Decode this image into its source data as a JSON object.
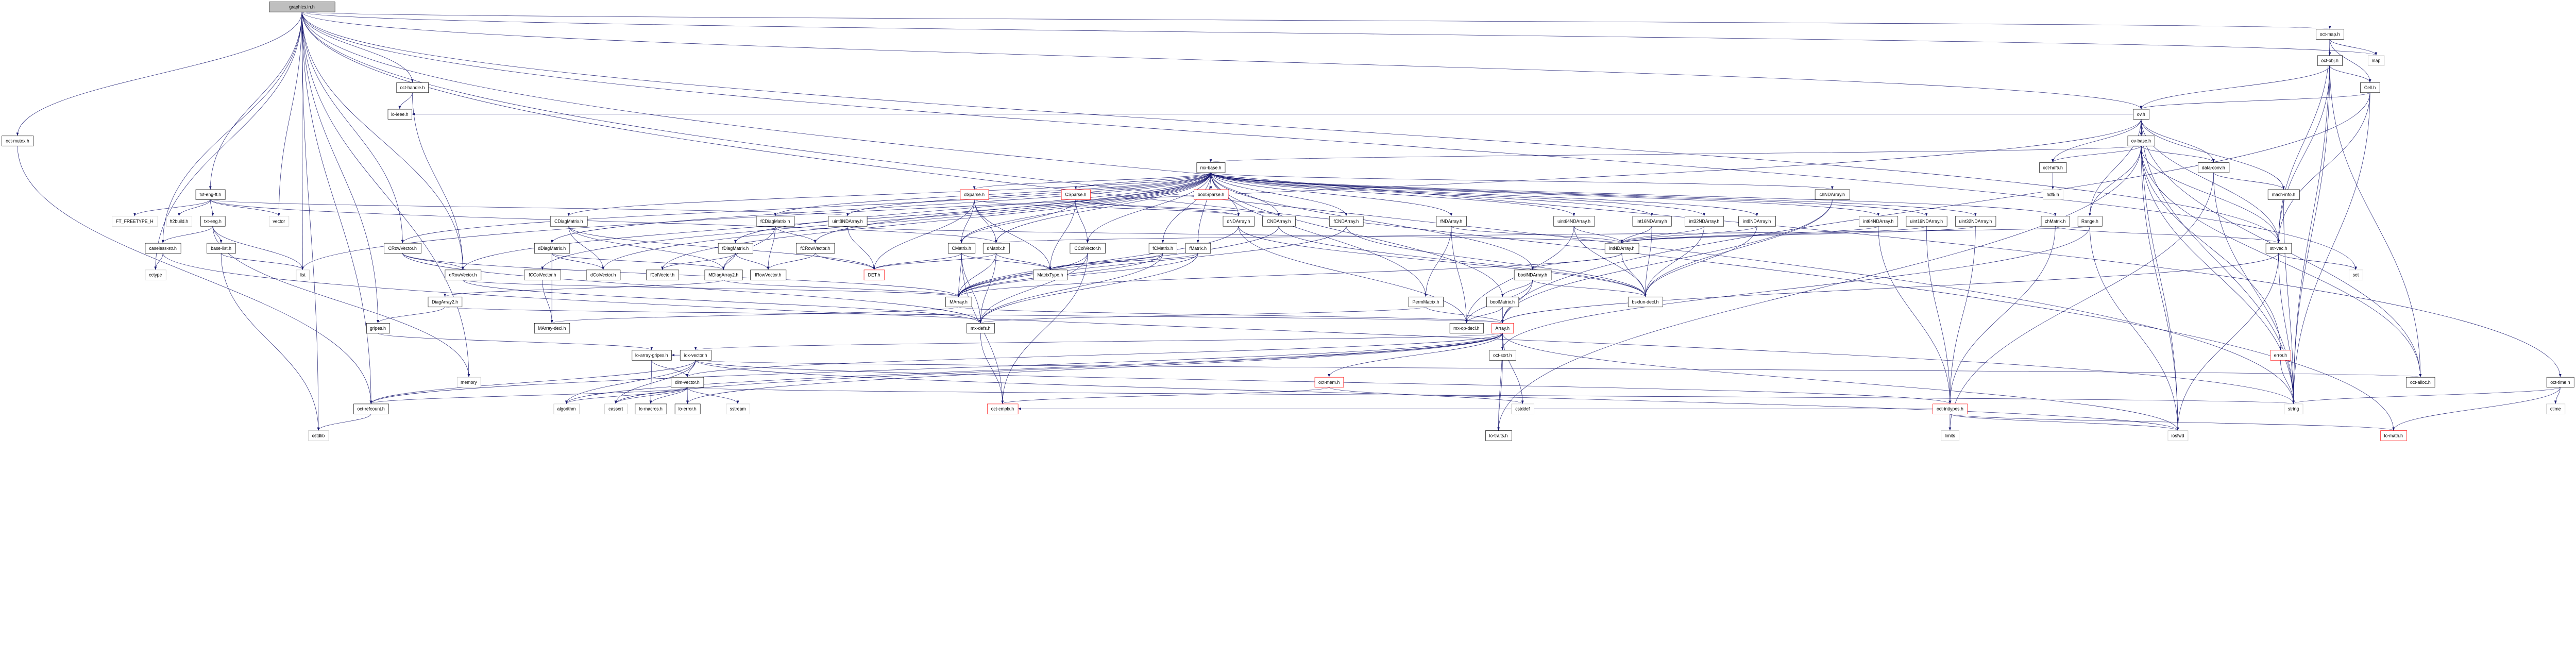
{
  "graph": {
    "title": "libinterp/corefcn/graphics.in.h",
    "edge_color": "#191970",
    "node_border_colors": {
      "normal": "#000000",
      "external": "#bfbfbf",
      "missing": "#ff0000",
      "main_fill": "#bfbfbf"
    },
    "nodes": [
      {
        "id": "graphics.in.h",
        "kind": "main"
      },
      {
        "id": "oct-map.h",
        "kind": "normal"
      },
      {
        "id": "oct-obj.h",
        "kind": "normal"
      },
      {
        "id": "map",
        "kind": "external"
      },
      {
        "id": "oct-handle.h",
        "kind": "normal"
      },
      {
        "id": "Cell.h",
        "kind": "normal"
      },
      {
        "id": "lo-ieee.h",
        "kind": "normal"
      },
      {
        "id": "ov.h",
        "kind": "normal"
      },
      {
        "id": "oct-mutex.h",
        "kind": "normal"
      },
      {
        "id": "ov-base.h",
        "kind": "normal"
      },
      {
        "id": "mx-base.h",
        "kind": "normal"
      },
      {
        "id": "oct-hdf5.h",
        "kind": "normal"
      },
      {
        "id": "data-conv.h",
        "kind": "normal"
      },
      {
        "id": "txt-eng-ft.h",
        "kind": "normal"
      },
      {
        "id": "dSparse.h",
        "kind": "missing"
      },
      {
        "id": "CSparse.h",
        "kind": "missing"
      },
      {
        "id": "boolSparse.h",
        "kind": "missing"
      },
      {
        "id": "chNDArray.h",
        "kind": "normal"
      },
      {
        "id": "hdf5.h",
        "kind": "external"
      },
      {
        "id": "mach-info.h",
        "kind": "normal"
      },
      {
        "id": "FT_FREETYPE_H",
        "kind": "external"
      },
      {
        "id": "ft2build.h",
        "kind": "external"
      },
      {
        "id": "txt-eng.h",
        "kind": "normal"
      },
      {
        "id": "vector",
        "kind": "external"
      },
      {
        "id": "CDiagMatrix.h",
        "kind": "normal"
      },
      {
        "id": "fCDiagMatrix.h",
        "kind": "normal"
      },
      {
        "id": "uint8NDArray.h",
        "kind": "normal"
      },
      {
        "id": "dNDArray.h",
        "kind": "normal"
      },
      {
        "id": "CNDArray.h",
        "kind": "normal"
      },
      {
        "id": "fCNDArray.h",
        "kind": "normal"
      },
      {
        "id": "fNDArray.h",
        "kind": "normal"
      },
      {
        "id": "uint64NDArray.h",
        "kind": "normal"
      },
      {
        "id": "int16NDArray.h",
        "kind": "normal"
      },
      {
        "id": "int32NDArray.h",
        "kind": "normal"
      },
      {
        "id": "int8NDArray.h",
        "kind": "normal"
      },
      {
        "id": "int64NDArray.h",
        "kind": "normal"
      },
      {
        "id": "uint16NDArray.h",
        "kind": "normal"
      },
      {
        "id": "uint32NDArray.h",
        "kind": "normal"
      },
      {
        "id": "chMatrix.h",
        "kind": "normal"
      },
      {
        "id": "Range.h",
        "kind": "normal"
      },
      {
        "id": "caseless-str.h",
        "kind": "normal"
      },
      {
        "id": "base-list.h",
        "kind": "normal"
      },
      {
        "id": "CRowVector.h",
        "kind": "normal"
      },
      {
        "id": "dDiagMatrix.h",
        "kind": "normal"
      },
      {
        "id": "fDiagMatrix.h",
        "kind": "normal"
      },
      {
        "id": "fCRowVector.h",
        "kind": "normal"
      },
      {
        "id": "CMatrix.h",
        "kind": "normal"
      },
      {
        "id": "dMatrix.h",
        "kind": "normal"
      },
      {
        "id": "CColVector.h",
        "kind": "normal"
      },
      {
        "id": "fCMatrix.h",
        "kind": "normal"
      },
      {
        "id": "fMatrix.h",
        "kind": "normal"
      },
      {
        "id": "intNDArray.h",
        "kind": "normal"
      },
      {
        "id": "str-vec.h",
        "kind": "normal"
      },
      {
        "id": "cctype",
        "kind": "external"
      },
      {
        "id": "list",
        "kind": "external"
      },
      {
        "id": "dRowVector.h",
        "kind": "normal"
      },
      {
        "id": "fCColVector.h",
        "kind": "normal"
      },
      {
        "id": "dColVector.h",
        "kind": "normal"
      },
      {
        "id": "fColVector.h",
        "kind": "normal"
      },
      {
        "id": "MDiagArray2.h",
        "kind": "normal"
      },
      {
        "id": "fRowVector.h",
        "kind": "normal"
      },
      {
        "id": "DET.h",
        "kind": "missing"
      },
      {
        "id": "MatrixType.h",
        "kind": "normal"
      },
      {
        "id": "boolNDArray.h",
        "kind": "normal"
      },
      {
        "id": "set",
        "kind": "external"
      },
      {
        "id": "DiagArray2.h",
        "kind": "normal"
      },
      {
        "id": "MArray.h",
        "kind": "normal"
      },
      {
        "id": "PermMatrix.h",
        "kind": "normal"
      },
      {
        "id": "boolMatrix.h",
        "kind": "normal"
      },
      {
        "id": "bsxfun-decl.h",
        "kind": "normal"
      },
      {
        "id": "gripes.h",
        "kind": "normal"
      },
      {
        "id": "MArray-decl.h",
        "kind": "normal"
      },
      {
        "id": "mx-defs.h",
        "kind": "normal"
      },
      {
        "id": "mx-op-decl.h",
        "kind": "normal"
      },
      {
        "id": "Array.h",
        "kind": "missing"
      },
      {
        "id": "lo-array-gripes.h",
        "kind": "normal"
      },
      {
        "id": "idx-vector.h",
        "kind": "normal"
      },
      {
        "id": "oct-sort.h",
        "kind": "normal"
      },
      {
        "id": "error.h",
        "kind": "missing"
      },
      {
        "id": "memory",
        "kind": "external"
      },
      {
        "id": "dim-vector.h",
        "kind": "normal"
      },
      {
        "id": "oct-mem.h",
        "kind": "missing"
      },
      {
        "id": "oct-alloc.h",
        "kind": "normal"
      },
      {
        "id": "oct-time.h",
        "kind": "normal"
      },
      {
        "id": "oct-refcount.h",
        "kind": "normal"
      },
      {
        "id": "algorithm",
        "kind": "external"
      },
      {
        "id": "cassert",
        "kind": "external"
      },
      {
        "id": "lo-macros.h",
        "kind": "normal"
      },
      {
        "id": "lo-error.h",
        "kind": "normal"
      },
      {
        "id": "sstream",
        "kind": "external"
      },
      {
        "id": "oct-cmplx.h",
        "kind": "missing"
      },
      {
        "id": "cstddef",
        "kind": "external"
      },
      {
        "id": "oct-inttypes.h",
        "kind": "missing"
      },
      {
        "id": "string",
        "kind": "external"
      },
      {
        "id": "ctime",
        "kind": "external"
      },
      {
        "id": "cstdlib",
        "kind": "external"
      },
      {
        "id": "lo-traits.h",
        "kind": "normal"
      },
      {
        "id": "limits",
        "kind": "external"
      },
      {
        "id": "iosfwd",
        "kind": "external"
      },
      {
        "id": "lo-math.h",
        "kind": "missing"
      }
    ],
    "edges": {
      "graphics.in.h": [
        "oct-mutex.h",
        "txt-eng-ft.h",
        "oct-handle.h",
        "vector",
        "list",
        "caseless-str.h",
        "cctype",
        "oct-refcount.h",
        "cstdlib",
        "gripes.h",
        "memory",
        "oct-map.h",
        "ov.h",
        "str-vec.h",
        "string",
        "map",
        "set",
        "CRowVector.h",
        "dRowVector.h",
        "oct-time.h",
        "lo-math.h"
      ],
      "txt-eng-ft.h": [
        "FT_FREETYPE_H",
        "ft2build.h",
        "txt-eng.h",
        "vector",
        "dMatrix.h",
        "uint8NDArray.h"
      ],
      "txt-eng.h": [
        "caseless-str.h",
        "base-list.h",
        "list",
        "memory"
      ],
      "caseless-str.h": [
        "cctype",
        "string"
      ],
      "base-list.h": [
        "list",
        "cstdlib"
      ],
      "oct-handle.h": [
        "lo-ieee.h",
        "dRowVector.h"
      ],
      "oct-mutex.h": [
        "oct-refcount.h"
      ],
      "oct-map.h": [
        "oct-obj.h",
        "map",
        "Cell.h",
        "str-vec.h",
        "string"
      ],
      "oct-obj.h": [
        "Cell.h",
        "ov.h",
        "oct-alloc.h",
        "str-vec.h",
        "string"
      ],
      "Cell.h": [
        "Array.h",
        "str-vec.h",
        "ov.h",
        "string"
      ],
      "ov.h": [
        "ov-base.h",
        "oct-hdf5.h",
        "data-conv.h",
        "mach-info.h",
        "Range.h",
        "str-vec.h",
        "oct-alloc.h",
        "string",
        "iosfwd",
        "lo-ieee.h",
        "list"
      ],
      "ov-base.h": [
        "oct-hdf5.h",
        "data-conv.h",
        "mx-base.h",
        "str-vec.h",
        "error.h",
        "oct-alloc.h",
        "Range.h",
        "iosfwd",
        "string",
        "lo-traits.h"
      ],
      "oct-hdf5.h": [
        "hdf5.h"
      ],
      "data-conv.h": [
        "mach-info.h",
        "limits",
        "string"
      ],
      "mach-info.h": [
        "string"
      ],
      "str-vec.h": [
        "set",
        "string",
        "Array.h",
        "iosfwd"
      ],
      "error.h": [
        "string"
      ],
      "oct-time.h": [
        "ctime",
        "string",
        "lo-math.h"
      ],
      "mx-base.h": [
        "dSparse.h",
        "CSparse.h",
        "boolSparse.h",
        "dNDArray.h",
        "CNDArray.h",
        "fCNDArray.h",
        "fNDArray.h",
        "uint64NDArray.h",
        "int16NDArray.h",
        "int32NDArray.h",
        "int8NDArray.h",
        "chNDArray.h",
        "int64NDArray.h",
        "uint16NDArray.h",
        "uint32NDArray.h",
        "chMatrix.h",
        "CMatrix.h",
        "dMatrix.h",
        "fCMatrix.h",
        "fMatrix.h",
        "boolMatrix.h",
        "boolNDArray.h",
        "PermMatrix.h",
        "CDiagMatrix.h",
        "fCDiagMatrix.h",
        "uint8NDArray.h",
        "dDiagMatrix.h",
        "fDiagMatrix.h",
        "fCRowVector.h",
        "fCColVector.h",
        "dColVector.h",
        "fColVector.h",
        "CColVector.h",
        "dRowVector.h",
        "CRowVector.h"
      ],
      "dSparse.h": [
        "CMatrix.h",
        "dMatrix.h",
        "MatrixType.h",
        "dNDArray.h",
        "DET.h"
      ],
      "CSparse.h": [
        "CMatrix.h",
        "CColVector.h",
        "MatrixType.h",
        "CNDArray.h",
        "dNDArray.h"
      ],
      "CMatrix.h": [
        "MArray.h",
        "mx-defs.h",
        "MatrixType.h",
        "DET.h",
        "oct-cmplx.h"
      ],
      "dMatrix.h": [
        "MArray.h",
        "mx-defs.h",
        "MatrixType.h",
        "DET.h"
      ],
      "fCMatrix.h": [
        "MArray.h",
        "mx-defs.h",
        "MatrixType.h"
      ],
      "fMatrix.h": [
        "MArray.h",
        "mx-defs.h",
        "MatrixType.h"
      ],
      "CColVector.h": [
        "MArray.h",
        "mx-defs.h",
        "oct-cmplx.h"
      ],
      "CRowVector.h": [
        "dRowVector.h",
        "MArray.h",
        "mx-defs.h"
      ],
      "dRowVector.h": [
        "MArray.h",
        "mx-defs.h"
      ],
      "CDiagMatrix.h": [
        "dColVector.h",
        "MDiagArray2.h",
        "DET.h"
      ],
      "dDiagMatrix.h": [
        "dColVector.h",
        "MDiagArray2.h",
        "MArray-decl.h"
      ],
      "fDiagMatrix.h": [
        "fColVector.h",
        "fRowVector.h",
        "MDiagArray2.h"
      ],
      "fCDiagMatrix.h": [
        "MDiagArray2.h",
        "fRowVector.h",
        "fCRowVector.h"
      ],
      "fCRowVector.h": [
        "fRowVector.h",
        "DET.h"
      ],
      "fCColVector.h": [
        "MArray-decl.h"
      ],
      "MDiagArray2.h": [
        "DiagArray2.h",
        "MArray.h"
      ],
      "DiagArray2.h": [
        "Array.h",
        "gripes.h"
      ],
      "MArray.h": [
        "Array.h",
        "MArray-decl.h"
      ],
      "gripes.h": [
        "lo-array-gripes.h"
      ],
      "uint8NDArray.h": [
        "intNDArray.h",
        "DET.h"
      ],
      "dNDArray.h": [
        "MArray.h",
        "bsxfun-decl.h",
        "mx-op-decl.h"
      ],
      "CNDArray.h": [
        "MArray.h",
        "bsxfun-decl.h"
      ],
      "fCNDArray.h": [
        "MArray.h",
        "bsxfun-decl.h"
      ],
      "fNDArray.h": [
        "intNDArray.h",
        "mx-op-decl.h",
        "PermMatrix.h"
      ],
      "uint64NDArray.h": [
        "intNDArray.h",
        "bsxfun-decl.h",
        "mx-op-decl.h"
      ],
      "int16NDArray.h": [
        "intNDArray.h",
        "bsxfun-decl.h"
      ],
      "int32NDArray.h": [
        "intNDArray.h",
        "bsxfun-decl.h"
      ],
      "int8NDArray.h": [
        "intNDArray.h",
        "bsxfun-decl.h"
      ],
      "int64NDArray.h": [
        "intNDArray.h",
        "oct-inttypes.h"
      ],
      "uint16NDArray.h": [
        "intNDArray.h",
        "oct-inttypes.h"
      ],
      "uint32NDArray.h": [
        "intNDArray.h",
        "oct-inttypes.h"
      ],
      "chNDArray.h": [
        "bsxfun-decl.h",
        "Array.h"
      ],
      "chMatrix.h": [
        "str-vec.h",
        "oct-inttypes.h"
      ],
      "Range.h": [
        "dMatrix.h",
        "oct-sort.h",
        "iosfwd"
      ],
      "intNDArray.h": [
        "boolNDArray.h",
        "bsxfun-decl.h",
        "MArray.h"
      ],
      "boolNDArray.h": [
        "boolMatrix.h",
        "mx-op-decl.h",
        "bsxfun-decl.h",
        "Array.h"
      ],
      "boolMatrix.h": [
        "Array.h",
        "mx-op-decl.h"
      ],
      "PermMatrix.h": [
        "Array.h",
        "mx-defs.h"
      ],
      "mx-defs.h": [
        "oct-cmplx.h"
      ],
      "Array.h": [
        "oct-sort.h",
        "lo-traits.h",
        "cstddef",
        "dim-vector.h",
        "idx-vector.h",
        "lo-error.h",
        "oct-mem.h",
        "oct-refcount.h",
        "algorithm",
        "cassert",
        "iosfwd"
      ],
      "oct-sort.h": [
        "lo-traits.h"
      ],
      "idx-vector.h": [
        "dim-vector.h",
        "oct-inttypes.h",
        "oct-alloc.h",
        "lo-array-gripes.h",
        "algorithm",
        "cassert",
        "iosfwd",
        "oct-refcount.h"
      ],
      "lo-array-gripes.h": [
        "dim-vector.h",
        "lo-macros.h"
      ],
      "dim-vector.h": [
        "lo-macros.h",
        "lo-error.h",
        "oct-refcount.h",
        "cassert",
        "algorithm",
        "sstream",
        "string"
      ],
      "oct-mem.h": [
        "cstddef",
        "oct-cmplx.h"
      ],
      "oct-inttypes.h": [
        "limits",
        "iosfwd",
        "lo-math.h",
        "oct-cmplx.h"
      ],
      "oct-refcount.h": [
        "cstdlib"
      ]
    }
  }
}
